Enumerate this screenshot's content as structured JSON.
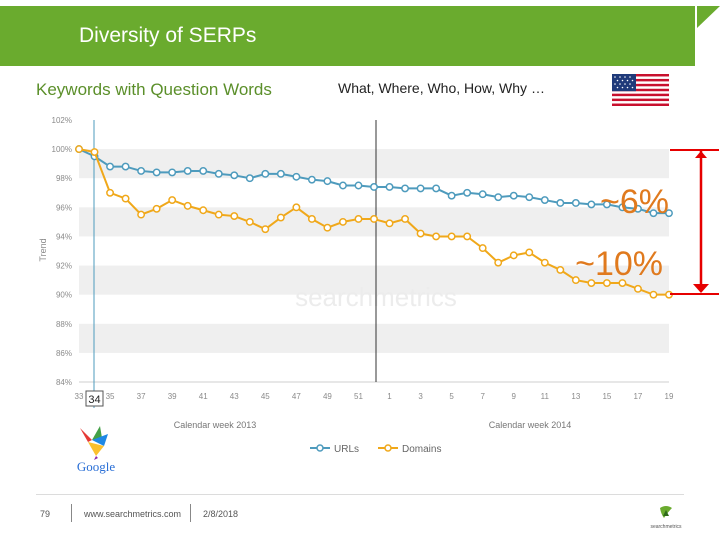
{
  "header": {
    "title": "Diversity of SERPs"
  },
  "subtitle": "Keywords with Question Words",
  "question_words": "What, Where, Who, How, Why …",
  "flag_icon": "us-flag-icon",
  "annotations": {
    "urls_diff": "~6%",
    "domains_diff": "~10%",
    "marker": "34"
  },
  "colors": {
    "brand_green": "#6aab2e",
    "urls": "#4e9bbd",
    "domains": "#f0a81a",
    "annotation": "#e07a1e",
    "bracket": "#e60000"
  },
  "footer": {
    "page": "79",
    "site": "www.searchmetrics.com",
    "date": "2/8/2018",
    "logo_text": "searchmetrics"
  },
  "google_logo_text": "Google",
  "watermark": "searchmetrics",
  "chart_data": {
    "type": "line",
    "ylabel": "Trend",
    "ylim": [
      84,
      102
    ],
    "yticks": [
      "102%",
      "100%",
      "98%",
      "96%",
      "94%",
      "92%",
      "90%",
      "88%",
      "86%",
      "84%"
    ],
    "x_tick_labels": [
      "33",
      "35",
      "37",
      "39",
      "41",
      "43",
      "45",
      "47",
      "49",
      "51",
      "1",
      "3",
      "5",
      "7",
      "9",
      "11",
      "13",
      "15",
      "17",
      "19"
    ],
    "x_group_labels": [
      "Calendar week 2013",
      "Calendar week 2014"
    ],
    "grid": true,
    "legend_position": "bottom",
    "series": [
      {
        "name": "URLs",
        "values": [
          100,
          99.5,
          98.8,
          98.8,
          98.5,
          98.4,
          98.4,
          98.5,
          98.5,
          98.3,
          98.2,
          98.0,
          98.3,
          98.3,
          98.1,
          97.9,
          97.8,
          97.5,
          97.5,
          97.4,
          97.4,
          97.3,
          97.3,
          97.3,
          96.8,
          97.0,
          96.9,
          96.7,
          96.8,
          96.7,
          96.5,
          96.3,
          96.3,
          96.2,
          96.2,
          96.0,
          95.9,
          95.6,
          95.6
        ]
      },
      {
        "name": "Domains",
        "values": [
          100,
          99.8,
          97.0,
          96.6,
          95.5,
          95.9,
          96.5,
          96.1,
          95.8,
          95.5,
          95.4,
          95.0,
          94.5,
          95.3,
          96.0,
          95.2,
          94.6,
          95.0,
          95.2,
          95.2,
          94.9,
          95.2,
          94.2,
          94.0,
          94.0,
          94.0,
          93.2,
          92.2,
          92.7,
          92.9,
          92.2,
          91.7,
          91.0,
          90.8,
          90.8,
          90.8,
          90.4,
          90.0,
          90.0
        ]
      }
    ]
  }
}
